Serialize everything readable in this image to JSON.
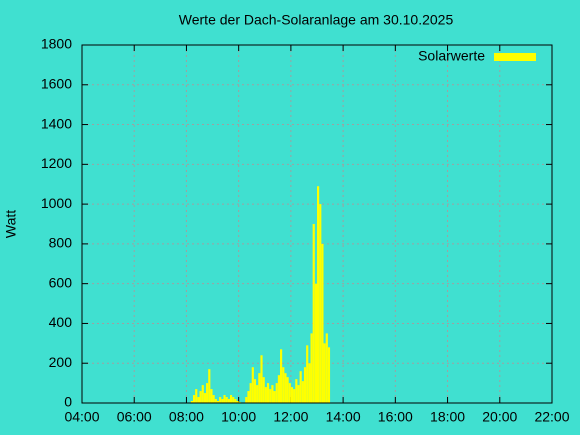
{
  "chart_data": {
    "type": "bar",
    "title": "Werte der Dach-Solaranlage am 30.10.2025",
    "ylabel": "Watt",
    "series": [
      {
        "name": "Solarwerte",
        "color": "#ffff00",
        "x": [
          "08:10",
          "08:15",
          "08:20",
          "08:25",
          "08:30",
          "08:35",
          "08:40",
          "08:45",
          "08:50",
          "08:55",
          "09:00",
          "09:05",
          "09:10",
          "09:15",
          "09:20",
          "09:25",
          "09:30",
          "09:35",
          "09:40",
          "09:45",
          "09:50",
          "09:55",
          "10:00",
          "10:05",
          "10:10",
          "10:15",
          "10:20",
          "10:25",
          "10:30",
          "10:35",
          "10:40",
          "10:45",
          "10:50",
          "10:55",
          "11:00",
          "11:05",
          "11:10",
          "11:15",
          "11:20",
          "11:25",
          "11:30",
          "11:35",
          "11:40",
          "11:45",
          "11:50",
          "11:55",
          "12:00",
          "12:05",
          "12:10",
          "12:15",
          "12:20",
          "12:25",
          "12:30",
          "12:35",
          "12:40",
          "12:45",
          "12:50",
          "12:55",
          "13:00",
          "13:05",
          "13:10",
          "13:15",
          "13:20",
          "13:25",
          "13:30"
        ],
        "values": [
          10,
          40,
          70,
          30,
          60,
          90,
          50,
          100,
          170,
          70,
          40,
          20,
          10,
          30,
          20,
          40,
          30,
          20,
          40,
          30,
          20,
          10,
          5,
          0,
          0,
          30,
          60,
          100,
          180,
          120,
          90,
          150,
          240,
          130,
          80,
          100,
          70,
          90,
          60,
          100,
          140,
          270,
          180,
          150,
          130,
          100,
          80,
          70,
          120,
          90,
          160,
          110,
          180,
          290,
          200,
          350,
          900,
          600,
          1090,
          1000,
          800,
          300,
          350,
          280,
          0
        ]
      }
    ],
    "xlim": [
      "04:00",
      "22:00"
    ],
    "xticks": [
      "04:00",
      "06:00",
      "08:00",
      "10:00",
      "12:00",
      "14:00",
      "16:00",
      "18:00",
      "20:00",
      "22:00"
    ],
    "ylim": [
      0,
      1800
    ],
    "yticks": [
      0,
      200,
      400,
      600,
      800,
      1000,
      1200,
      1400,
      1600,
      1800
    ],
    "grid": true,
    "legend": "top-right"
  }
}
